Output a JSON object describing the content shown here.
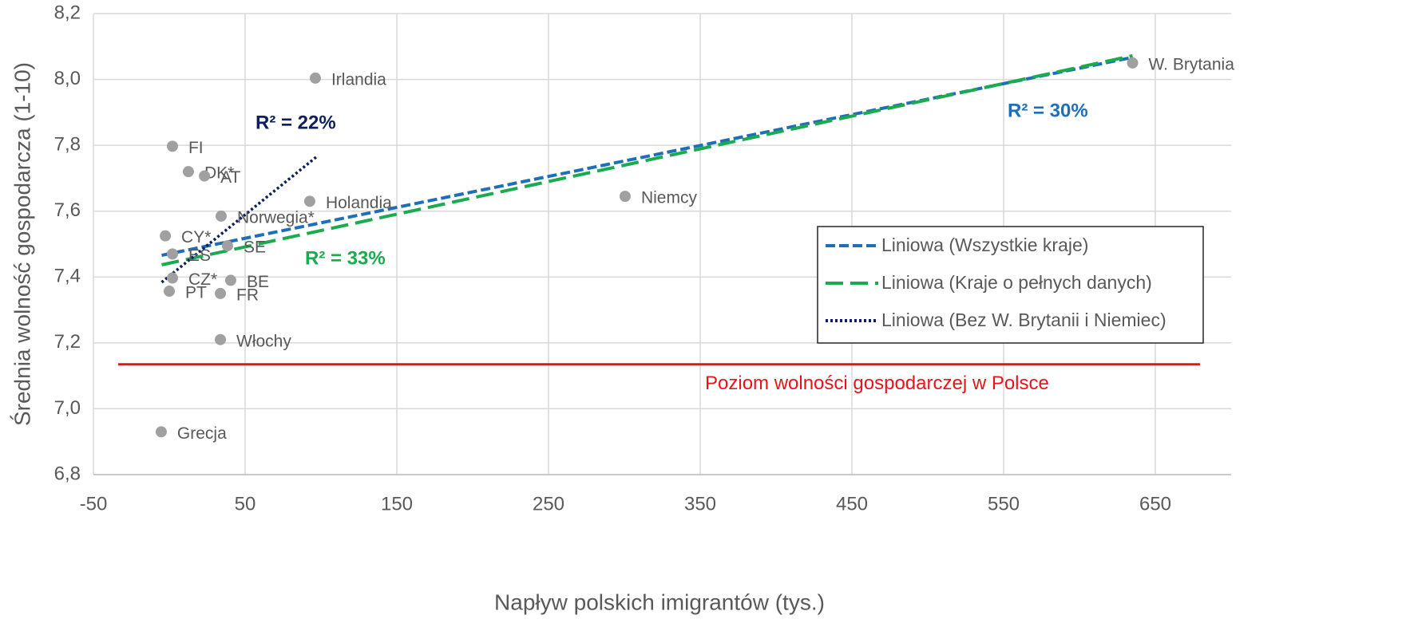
{
  "chart_data": {
    "type": "scatter",
    "xlabel": "Napływ polskich imigrantów (tys.)",
    "ylabel": "Średnia wolność gospodarcza (1-10)",
    "xlim": [
      -50,
      700
    ],
    "xticks": [
      -50,
      50,
      150,
      250,
      350,
      450,
      550,
      650
    ],
    "ylim": [
      6.8,
      8.2
    ],
    "yticks": [
      {
        "value": 6.8,
        "label": "6,8"
      },
      {
        "value": 7.0,
        "label": "7,0"
      },
      {
        "value": 7.2,
        "label": "7,2"
      },
      {
        "value": 7.4,
        "label": "7,4"
      },
      {
        "value": 7.6,
        "label": "7,6"
      },
      {
        "value": 7.8,
        "label": "7,8"
      },
      {
        "value": 8.0,
        "label": "8,0"
      },
      {
        "value": 8.2,
        "label": "8,2"
      }
    ],
    "grid": true,
    "points": {
      "color": "#a0a0a0",
      "labels": [
        "Irlandia",
        "FI",
        "DK*",
        "AT",
        "Holandia",
        "Norwegia*",
        "CY*",
        "ES",
        "SE",
        "CZ*",
        "BE",
        "PT",
        "FR",
        "Włochy",
        "Grecja",
        "Niemcy",
        "W. Brytania"
      ],
      "x": [
        96.3,
        2.1,
        12.6,
        23.2,
        92.6,
        34.2,
        -2.6,
        2.1,
        38.4,
        2.1,
        40.5,
        0,
        33.7,
        33.7,
        -5.3,
        300.5,
        635
      ],
      "y": [
        8.004,
        7.797,
        7.72,
        7.707,
        7.63,
        7.585,
        7.525,
        7.47,
        7.495,
        7.397,
        7.39,
        7.357,
        7.35,
        7.21,
        6.93,
        7.645,
        8.05
      ]
    },
    "series": [
      {
        "name": "Liniowa (Wszystkie kraje)",
        "color": "#1f6fb8",
        "dash": "12,5",
        "x": [
          -5,
          635
        ],
        "values": [
          7.466,
          8.067
        ]
      },
      {
        "name": "Liniowa (Kraje o pełnych danych)",
        "color": "#1aab4f",
        "dash": "22,9",
        "x": [
          -5,
          635
        ],
        "values": [
          7.437,
          8.072
        ]
      },
      {
        "name": "Liniowa (Bez W. Brytanii i Niemiec)",
        "color": "#0d1f5c",
        "dash": "3,3",
        "x": [
          -5,
          96.8
        ],
        "values": [
          7.384,
          7.764
        ]
      }
    ],
    "reference_line": {
      "label": "Poziom wolności gospodarczej w Polsce",
      "value": 7.135,
      "color": "#e8141a"
    },
    "annotations": [
      {
        "text": "R² = 22%",
        "color": "#0d1f5c"
      },
      {
        "text": "R² = 33%",
        "color": "#1aab4f"
      },
      {
        "text": "R² = 30%",
        "color": "#1f6fb8"
      }
    ],
    "legend": "right"
  }
}
